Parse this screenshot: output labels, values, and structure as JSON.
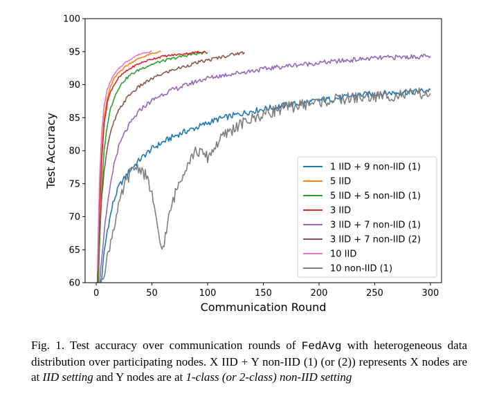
{
  "chart_data": {
    "type": "line",
    "xlabel": "Communication Round",
    "ylabel": "Test Accuracy",
    "xlim": [
      -10,
      310
    ],
    "ylim": [
      60,
      100
    ],
    "xticks": [
      0,
      50,
      100,
      150,
      200,
      250,
      300
    ],
    "yticks": [
      60,
      65,
      70,
      75,
      80,
      85,
      90,
      95,
      100
    ],
    "grid": false,
    "legend_position": "lower-right",
    "series": [
      {
        "name": "1 IID + 9 non-IID (1)",
        "color": "#1f77b4",
        "x": [
          1,
          3,
          5,
          7,
          10,
          15,
          20,
          30,
          40,
          50,
          60,
          70,
          80,
          90,
          100,
          110,
          120,
          130,
          140,
          150,
          160,
          170,
          180,
          190,
          200,
          210,
          220,
          230,
          240,
          250,
          260,
          270,
          280,
          290,
          300
        ],
        "y": [
          55,
          58,
          61,
          64.5,
          68,
          72,
          74.5,
          77,
          78.8,
          80.3,
          81.3,
          82.2,
          82.9,
          83.5,
          84.2,
          84.8,
          85.2,
          85.6,
          86,
          86.3,
          86.6,
          86.9,
          87.1,
          87.3,
          87.6,
          87.8,
          88,
          88.3,
          88.5,
          88.6,
          88.7,
          88.8,
          88.9,
          89,
          89.2
        ]
      },
      {
        "name": "5 IID",
        "color": "#ff7f0e",
        "x": [
          1,
          3,
          5,
          7,
          10,
          13,
          16,
          20,
          25,
          30,
          35,
          40,
          45,
          50,
          55,
          58
        ],
        "y": [
          60,
          72,
          80,
          85,
          88,
          89.8,
          90.9,
          91.8,
          92.6,
          93.2,
          93.7,
          94.1,
          94.4,
          94.7,
          94.9,
          95
        ]
      },
      {
        "name": "5 IID + 5 non-IID (1)",
        "color": "#2ca02c",
        "x": [
          1,
          3,
          5,
          7,
          10,
          13,
          16,
          20,
          25,
          30,
          40,
          50,
          60,
          70,
          80,
          90,
          100
        ],
        "y": [
          55,
          66,
          74,
          80,
          84,
          86.5,
          88,
          89.5,
          90.6,
          91.4,
          92.4,
          93.1,
          93.6,
          94,
          94.4,
          94.7,
          94.9
        ]
      },
      {
        "name": "3 IID",
        "color": "#d62728",
        "x": [
          1,
          3,
          5,
          7,
          10,
          13,
          16,
          20,
          25,
          30,
          35,
          40,
          50,
          60,
          70,
          80,
          90,
          98
        ],
        "y": [
          60,
          71,
          79,
          84,
          87.4,
          89,
          90,
          91,
          91.8,
          92.4,
          92.9,
          93.3,
          93.9,
          94.3,
          94.5,
          94.7,
          94.9,
          95
        ]
      },
      {
        "name": "3 IID + 7 non-IID (1)",
        "color": "#9467bd",
        "x": [
          1,
          3,
          5,
          8,
          12,
          16,
          20,
          25,
          30,
          40,
          50,
          60,
          70,
          80,
          90,
          100,
          120,
          140,
          160,
          180,
          200,
          220,
          240,
          260,
          280,
          300
        ],
        "y": [
          55,
          60,
          64,
          69,
          74,
          78,
          80.5,
          82.5,
          84,
          86.3,
          87.6,
          88.6,
          89.3,
          89.9,
          90.5,
          91,
          91.6,
          92.1,
          92.6,
          93,
          93.3,
          93.6,
          93.9,
          94.1,
          94.2,
          94.3
        ]
      },
      {
        "name": "3 IID + 7 non-IID (2)",
        "color": "#8c564b",
        "x": [
          1,
          3,
          5,
          7,
          10,
          13,
          16,
          20,
          25,
          30,
          40,
          50,
          60,
          70,
          80,
          90,
          100,
          110,
          120,
          133
        ],
        "y": [
          60,
          68,
          73,
          77,
          80.5,
          82.8,
          84.4,
          86,
          87.4,
          88.5,
          89.9,
          90.9,
          91.7,
          92.3,
          92.8,
          93.3,
          93.7,
          94.1,
          94.5,
          94.9
        ]
      },
      {
        "name": "10 IID",
        "color": "#e377c2",
        "x": [
          1,
          3,
          5,
          7,
          10,
          13,
          16,
          20,
          25,
          30,
          35,
          40,
          45,
          50
        ],
        "y": [
          62,
          76,
          83,
          86.8,
          89.3,
          90.6,
          91.5,
          92.4,
          93.2,
          93.8,
          94.3,
          94.7,
          94.9,
          95.1
        ]
      },
      {
        "name": "10 non-IID (1)",
        "color": "#7f7f7f",
        "x": [
          3,
          6,
          9,
          12,
          15,
          18,
          21,
          25,
          30,
          35,
          40,
          45,
          50,
          53,
          56,
          59,
          62,
          66,
          70,
          75,
          80,
          85,
          90,
          95,
          100,
          105,
          110,
          115,
          120,
          130,
          140,
          150,
          160,
          170,
          180,
          190,
          200,
          210,
          220,
          230,
          240,
          250,
          260,
          270,
          280,
          290,
          300
        ],
        "y": [
          60,
          61,
          63,
          65.5,
          68,
          70,
          72,
          74.5,
          76.5,
          77.5,
          77.3,
          76,
          73.5,
          70,
          67,
          65,
          67,
          70.5,
          73,
          75.5,
          77.5,
          79,
          80,
          79.5,
          79,
          80.2,
          81.4,
          82.3,
          83,
          84,
          84.8,
          85.5,
          86.1,
          86.5,
          86.8,
          87.1,
          87.4,
          87.6,
          87.8,
          88,
          88.1,
          88.2,
          88.3,
          88.4,
          88.5,
          88.6,
          88.7
        ]
      }
    ]
  },
  "caption": {
    "prefix": "Fig. 1.  Test accuracy over communication rounds of ",
    "code": "FedAvg",
    "middle": " with heterogeneous data distribution over participating nodes. X IID + Y non-IID (1) (or (2)) represents X nodes are at ",
    "em1": "IID setting",
    "middle2": " and Y nodes are at ",
    "em2": "1-class (or 2-class) non-IID setting"
  }
}
